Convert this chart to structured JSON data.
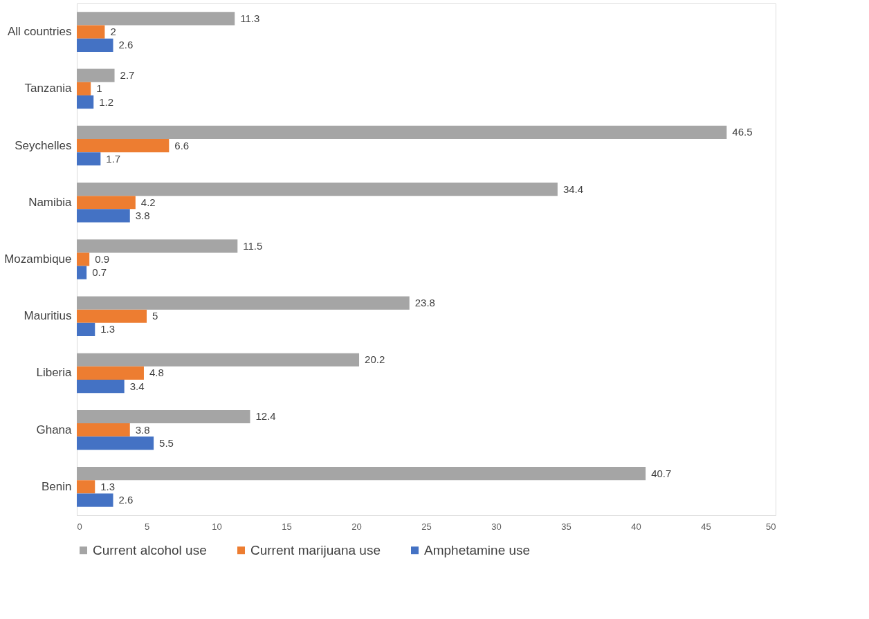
{
  "chart_data": {
    "type": "bar",
    "orientation": "horizontal",
    "categories": [
      "All countries",
      "Tanzania",
      "Seychelles",
      "Namibia",
      "Mozambique",
      "Mauritius",
      "Liberia",
      "Ghana",
      "Benin"
    ],
    "series": [
      {
        "name": "Current alcohol use",
        "color": "#a5a5a5",
        "values": [
          11.3,
          2.7,
          46.5,
          34.4,
          11.5,
          23.8,
          20.2,
          12.4,
          40.7
        ]
      },
      {
        "name": "Current marijuana use",
        "color": "#ed7d31",
        "values": [
          2,
          1,
          6.6,
          4.2,
          0.9,
          5,
          4.8,
          3.8,
          1.3
        ]
      },
      {
        "name": "Amphetamine use",
        "color": "#4472c4",
        "values": [
          2.6,
          1.2,
          1.7,
          3.8,
          0.7,
          1.3,
          3.4,
          5.5,
          2.6
        ]
      }
    ],
    "xlim": [
      0,
      50
    ],
    "xticks": [
      0,
      5,
      10,
      15,
      20,
      25,
      30,
      35,
      40,
      45,
      50
    ],
    "grid": false,
    "legend": "bottom",
    "data_labels": true
  }
}
